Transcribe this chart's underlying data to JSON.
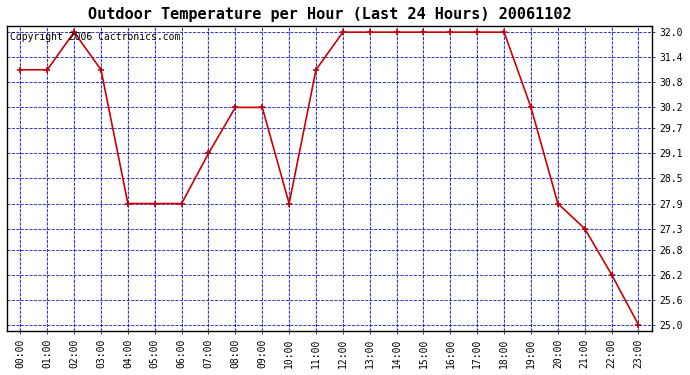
{
  "title": "Outdoor Temperature per Hour (Last 24 Hours) 20061102",
  "copyright_text": "Copyright 2006 Cactronics.com",
  "hours": [
    "00:00",
    "01:00",
    "02:00",
    "03:00",
    "04:00",
    "05:00",
    "06:00",
    "07:00",
    "08:00",
    "09:00",
    "10:00",
    "11:00",
    "12:00",
    "13:00",
    "14:00",
    "15:00",
    "16:00",
    "17:00",
    "18:00",
    "19:00",
    "20:00",
    "21:00",
    "22:00",
    "23:00"
  ],
  "temperatures": [
    31.1,
    31.1,
    32.0,
    31.1,
    27.9,
    27.9,
    27.9,
    29.1,
    30.2,
    30.2,
    27.9,
    31.1,
    32.0,
    32.0,
    32.0,
    32.0,
    32.0,
    32.0,
    32.0,
    30.2,
    27.9,
    27.3,
    26.2,
    25.0
  ],
  "yticks": [
    25.0,
    25.6,
    26.2,
    26.8,
    27.3,
    27.9,
    28.5,
    29.1,
    29.7,
    30.2,
    30.8,
    31.4,
    32.0
  ],
  "ymin": 24.85,
  "ymax": 32.15,
  "line_color": "#cc0000",
  "marker_color": "#cc0000",
  "fig_bg_color": "#ffffff",
  "plot_bg_color": "#ffffff",
  "grid_color_solid": "#0000bb",
  "grid_color_dash": "#0000bb",
  "border_color": "#000000",
  "title_fontsize": 11,
  "tick_fontsize": 7,
  "copyright_fontsize": 7
}
